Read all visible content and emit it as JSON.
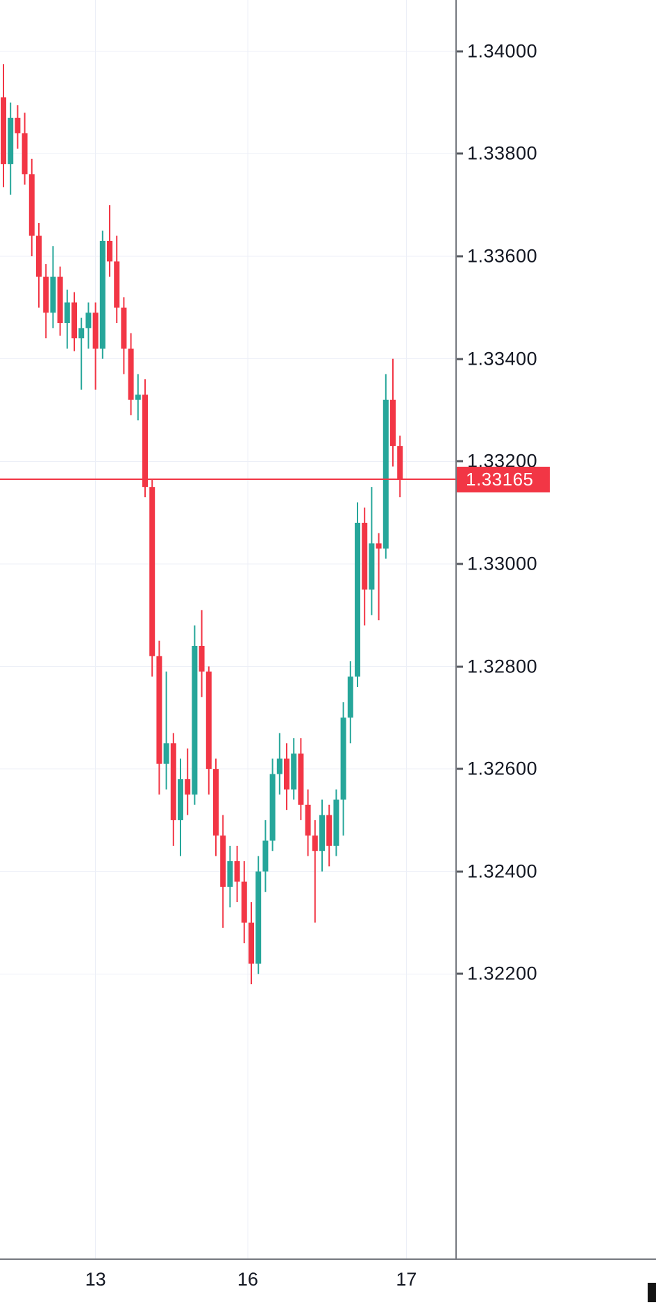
{
  "chart_data": {
    "type": "candlestick",
    "title": "",
    "instrument_hint": "FX price series (5-decimal quotes)",
    "price_line": {
      "value": "1.33165",
      "color": "#f23645"
    },
    "colors": {
      "up": "#26a69a",
      "down": "#f23645"
    },
    "y_axis": {
      "labels": [
        "1.34000",
        "1.33800",
        "1.33600",
        "1.33400",
        "1.33200",
        "1.33000",
        "1.32800",
        "1.32600",
        "1.32400",
        "1.32200"
      ],
      "min": 1.31645,
      "max": 1.341,
      "step": 0.002,
      "side": "right"
    },
    "x_axis": {
      "ticks": [
        {
          "label": "13",
          "index": 13
        },
        {
          "label": "16",
          "index": 34.5
        },
        {
          "label": "17",
          "index": 56.9
        }
      ]
    },
    "candle_format": [
      "open",
      "high",
      "low",
      "close"
    ],
    "candles": [
      [
        1.3391,
        1.33975,
        1.33735,
        1.3378
      ],
      [
        1.3378,
        1.339,
        1.3372,
        1.3387
      ],
      [
        1.3387,
        1.33895,
        1.3381,
        1.3384
      ],
      [
        1.3384,
        1.3388,
        1.3374,
        1.3376
      ],
      [
        1.3376,
        1.3379,
        1.336,
        1.3364
      ],
      [
        1.3364,
        1.33665,
        1.335,
        1.3356
      ],
      [
        1.3356,
        1.33585,
        1.3344,
        1.3349
      ],
      [
        1.3349,
        1.3362,
        1.3346,
        1.3356
      ],
      [
        1.3356,
        1.3358,
        1.33445,
        1.3347
      ],
      [
        1.3347,
        1.33535,
        1.3342,
        1.3351
      ],
      [
        1.3351,
        1.3353,
        1.33415,
        1.3344
      ],
      [
        1.3344,
        1.3348,
        1.3334,
        1.3346
      ],
      [
        1.3346,
        1.3351,
        1.3342,
        1.3349
      ],
      [
        1.3349,
        1.3351,
        1.3334,
        1.3342
      ],
      [
        1.3342,
        1.3365,
        1.334,
        1.3363
      ],
      [
        1.3363,
        1.337,
        1.3356,
        1.3359
      ],
      [
        1.3359,
        1.3364,
        1.3347,
        1.335
      ],
      [
        1.335,
        1.3352,
        1.3337,
        1.3342
      ],
      [
        1.3342,
        1.3345,
        1.3329,
        1.3332
      ],
      [
        1.3332,
        1.3337,
        1.3328,
        1.3333
      ],
      [
        1.3333,
        1.3336,
        1.3313,
        1.3315
      ],
      [
        1.3315,
        1.33165,
        1.3278,
        1.3282
      ],
      [
        1.3282,
        1.3285,
        1.3255,
        1.3261
      ],
      [
        1.3261,
        1.3279,
        1.3256,
        1.3265
      ],
      [
        1.3265,
        1.3267,
        1.3245,
        1.325
      ],
      [
        1.325,
        1.3262,
        1.3243,
        1.3258
      ],
      [
        1.3258,
        1.3264,
        1.3251,
        1.3255
      ],
      [
        1.3255,
        1.3288,
        1.3253,
        1.3284
      ],
      [
        1.3284,
        1.3291,
        1.3274,
        1.3279
      ],
      [
        1.3279,
        1.328,
        1.3255,
        1.326
      ],
      [
        1.326,
        1.3262,
        1.3243,
        1.3247
      ],
      [
        1.3247,
        1.3251,
        1.3229,
        1.3237
      ],
      [
        1.3237,
        1.3245,
        1.3233,
        1.3242
      ],
      [
        1.3242,
        1.3245,
        1.3234,
        1.3238
      ],
      [
        1.3238,
        1.3242,
        1.3226,
        1.323
      ],
      [
        1.323,
        1.3234,
        1.3218,
        1.3222
      ],
      [
        1.3222,
        1.3243,
        1.322,
        1.324
      ],
      [
        1.324,
        1.325,
        1.3236,
        1.3246
      ],
      [
        1.3246,
        1.3262,
        1.3244,
        1.3259
      ],
      [
        1.3259,
        1.3267,
        1.3255,
        1.3262
      ],
      [
        1.3262,
        1.3265,
        1.3252,
        1.3256
      ],
      [
        1.3256,
        1.3266,
        1.3254,
        1.3263
      ],
      [
        1.3263,
        1.3266,
        1.325,
        1.3253
      ],
      [
        1.3253,
        1.3256,
        1.3243,
        1.3247
      ],
      [
        1.3247,
        1.325,
        1.323,
        1.3244
      ],
      [
        1.3244,
        1.3254,
        1.324,
        1.3251
      ],
      [
        1.3251,
        1.3253,
        1.3241,
        1.3245
      ],
      [
        1.3245,
        1.3256,
        1.3243,
        1.3254
      ],
      [
        1.3254,
        1.3273,
        1.3247,
        1.327
      ],
      [
        1.327,
        1.3281,
        1.3265,
        1.3278
      ],
      [
        1.3278,
        1.3312,
        1.3276,
        1.3308
      ],
      [
        1.3308,
        1.3311,
        1.3288,
        1.3295
      ],
      [
        1.3295,
        1.3315,
        1.329,
        1.3304
      ],
      [
        1.3304,
        1.3306,
        1.3289,
        1.3303
      ],
      [
        1.3303,
        1.3337,
        1.3301,
        1.3332
      ],
      [
        1.3332,
        1.334,
        1.3319,
        1.3323
      ],
      [
        1.3323,
        1.3325,
        1.3313,
        1.33165
      ]
    ],
    "grid": {
      "horizontal": true,
      "vertical": true
    }
  }
}
